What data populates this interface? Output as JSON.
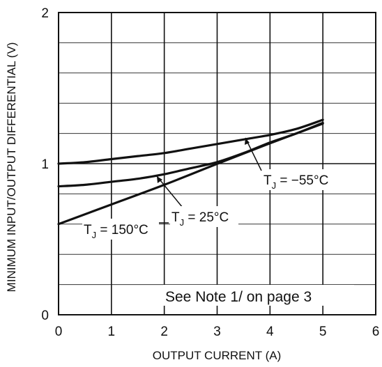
{
  "chart_data": {
    "type": "line",
    "xlabel": "OUTPUT CURRENT (A)",
    "ylabel": "MINIMUM INPUT/OUTPUT DIFFERENTIAL (V)",
    "xlim": [
      0,
      6
    ],
    "ylim": [
      0,
      2
    ],
    "x_ticks": [
      "0",
      "1",
      "2",
      "3",
      "4",
      "5",
      "6"
    ],
    "y_ticks": [
      "0",
      "1",
      "2"
    ],
    "grid": true,
    "series": [
      {
        "name": "TJ = −55°C",
        "x": [
          0,
          0.5,
          1,
          1.5,
          2,
          2.5,
          3,
          3.5,
          4,
          4.5,
          5
        ],
        "y": [
          1.0,
          1.01,
          1.03,
          1.05,
          1.07,
          1.1,
          1.13,
          1.16,
          1.19,
          1.23,
          1.29
        ]
      },
      {
        "name": "TJ = 25°C",
        "x": [
          0,
          0.5,
          1,
          1.5,
          2,
          2.5,
          3,
          3.5,
          4,
          4.5,
          5
        ],
        "y": [
          0.85,
          0.86,
          0.88,
          0.9,
          0.93,
          0.97,
          1.01,
          1.07,
          1.14,
          1.2,
          1.27
        ]
      },
      {
        "name": "TJ = 150°C",
        "x": [
          0,
          1,
          2,
          3,
          4,
          5
        ],
        "y": [
          0.6,
          0.73,
          0.86,
          0.999,
          1.135,
          1.265
        ]
      }
    ],
    "labels": {
      "m55": {
        "t": "T",
        "sub": "J",
        "rest": " = −55°C"
      },
      "p25": {
        "t": "T",
        "sub": "J",
        "rest": " = 25°C"
      },
      "p150": {
        "t": "T",
        "sub": "J",
        "rest": " = 150°C"
      }
    },
    "note": "See Note 1/ on page 3"
  }
}
